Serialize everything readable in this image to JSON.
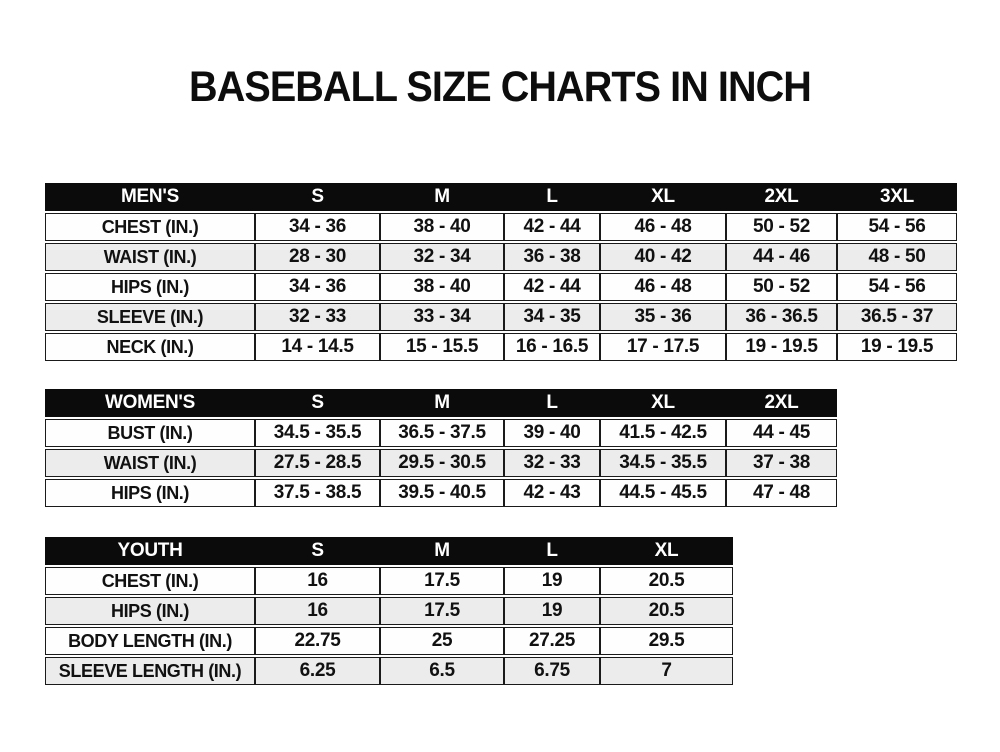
{
  "title": "BASEBALL SIZE CHARTS IN INCH",
  "unit": "inch",
  "colors": {
    "header_bg": "#0b0b0b",
    "header_text": "#ffffff",
    "row_alt_bg": "#ececec",
    "row_bg": "#fefefe",
    "border": "#1a1a1a",
    "text": "#111111"
  },
  "tables": [
    {
      "id": "mens",
      "header": [
        "MEN'S",
        "S",
        "M",
        "L",
        "XL",
        "2XL",
        "3XL"
      ],
      "rows": [
        [
          "CHEST (IN.)",
          "34 - 36",
          "38 - 40",
          "42 - 44",
          "46 - 48",
          "50 - 52",
          "54 - 56"
        ],
        [
          "WAIST (IN.)",
          "28 - 30",
          "32 - 34",
          "36 - 38",
          "40 - 42",
          "44 - 46",
          "48 - 50"
        ],
        [
          "HIPS (IN.)",
          "34 - 36",
          "38 - 40",
          "42 - 44",
          "46 - 48",
          "50 - 52",
          "54 - 56"
        ],
        [
          "SLEEVE (IN.)",
          "32 - 33",
          "33 - 34",
          "34 - 35",
          "35 - 36",
          "36 - 36.5",
          "36.5 - 37"
        ],
        [
          "NECK (IN.)",
          "14 - 14.5",
          "15 - 15.5",
          "16 - 16.5",
          "17 - 17.5",
          "19 - 19.5",
          "19 - 19.5"
        ]
      ]
    },
    {
      "id": "womens",
      "header": [
        "WOMEN'S",
        "S",
        "M",
        "L",
        "XL",
        "2XL"
      ],
      "rows": [
        [
          "BUST (IN.)",
          "34.5 - 35.5",
          "36.5 - 37.5",
          "39 - 40",
          "41.5 - 42.5",
          "44 - 45"
        ],
        [
          "WAIST (IN.)",
          "27.5 - 28.5",
          "29.5 - 30.5",
          "32 - 33",
          "34.5 - 35.5",
          "37 - 38"
        ],
        [
          "HIPS (IN.)",
          "37.5 - 38.5",
          "39.5 - 40.5",
          "42 - 43",
          "44.5 - 45.5",
          "47 - 48"
        ]
      ]
    },
    {
      "id": "youth",
      "header": [
        "YOUTH",
        "S",
        "M",
        "L",
        "XL"
      ],
      "rows": [
        [
          "CHEST (IN.)",
          "16",
          "17.5",
          "19",
          "20.5"
        ],
        [
          "HIPS (IN.)",
          "16",
          "17.5",
          "19",
          "20.5"
        ],
        [
          "BODY LENGTH (IN.)",
          "22.75",
          "25",
          "27.25",
          "29.5"
        ],
        [
          "SLEEVE LENGTH (IN.)",
          "6.25",
          "6.5",
          "6.75",
          "7"
        ]
      ]
    }
  ]
}
